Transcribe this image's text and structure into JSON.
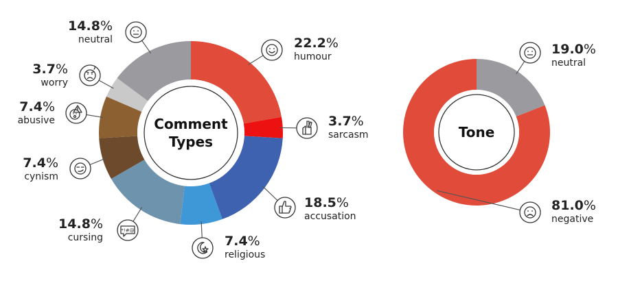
{
  "chart_data": [
    {
      "type": "pie",
      "title": "Comment Types",
      "title_lines": [
        "Comment",
        "Types"
      ],
      "slices": [
        {
          "label": "humour",
          "value": 22.2,
          "color": "#e04b3a",
          "icon": "smile-icon"
        },
        {
          "label": "sarcasm",
          "value": 3.7,
          "color": "#ee1111",
          "icon": "crossed-fingers-icon"
        },
        {
          "label": "accusation",
          "value": 18.5,
          "color": "#3f62b0",
          "icon": "pointing-hand-icon"
        },
        {
          "label": "religious",
          "value": 7.4,
          "color": "#3e97d6",
          "icon": "crescent-star-icon"
        },
        {
          "label": "cursing",
          "value": 14.8,
          "color": "#6e94ad",
          "icon": "cursing-bubble-icon"
        },
        {
          "label": "cynism",
          "value": 7.4,
          "color": "#6e4a2c",
          "icon": "smirk-icon"
        },
        {
          "label": "abusive",
          "value": 7.4,
          "color": "#8d6032",
          "icon": "warning-face-icon"
        },
        {
          "label": "worry",
          "value": 3.7,
          "color": "#c9c9c9",
          "icon": "worried-face-icon"
        },
        {
          "label": "neutral",
          "value": 14.8,
          "color": "#9b9b9f",
          "icon": "neutral-face-icon"
        }
      ],
      "display": [
        "22.2",
        "3.7",
        "18.5",
        "7.4",
        "14.8",
        "7.4",
        "7.4",
        "3.7",
        "14.8"
      ]
    },
    {
      "type": "pie",
      "title": "Tone",
      "title_lines": [
        "Tone"
      ],
      "slices": [
        {
          "label": "neutral",
          "value": 19.0,
          "color": "#9b9b9f",
          "icon": "neutral-face-icon"
        },
        {
          "label": "negative",
          "value": 81.0,
          "color": "#e04b3a",
          "icon": "sad-face-icon"
        }
      ],
      "display": [
        "19.0",
        "81.0"
      ]
    }
  ],
  "percent_sign": "%"
}
